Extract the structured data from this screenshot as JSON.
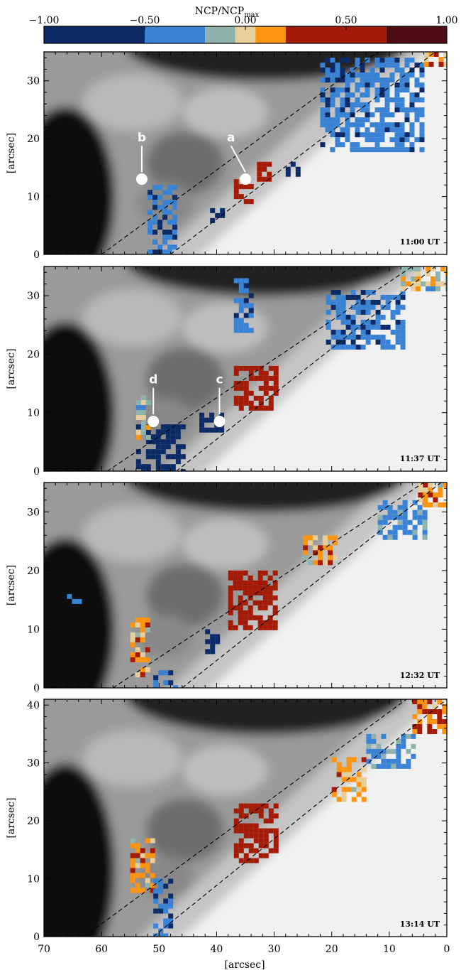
{
  "colorbar": {
    "title": "NCP/NCP",
    "title_sub": "max",
    "tick_labels": [
      "−1.00",
      "−0.50",
      "0.00",
      "0.50",
      "1.00"
    ],
    "tick_values": [
      -1.0,
      -0.5,
      0.0,
      0.5,
      1.0
    ],
    "bins": [
      {
        "from": -1.0,
        "to": -0.5,
        "color": "#0b2a66"
      },
      {
        "from": -0.5,
        "to": -0.2,
        "color": "#3a82d4"
      },
      {
        "from": -0.2,
        "to": -0.05,
        "color": "#8fb3ac"
      },
      {
        "from": -0.05,
        "to": 0.05,
        "color": "#e6cf9b"
      },
      {
        "from": 0.05,
        "to": 0.2,
        "color": "#fb9512"
      },
      {
        "from": 0.2,
        "to": 0.7,
        "color": "#a31a06"
      },
      {
        "from": 0.7,
        "to": 1.0,
        "color": "#4e0d15"
      }
    ]
  },
  "x_axis_title": "[arcsec]",
  "y_axis_title": "[arcsec]",
  "chart_data": [
    {
      "type": "heatmap",
      "time_label": "11:00 UT",
      "xlim": [
        70,
        0
      ],
      "ylim": [
        0,
        35
      ],
      "x_ticks": [
        70,
        60,
        50,
        40,
        30,
        20,
        10,
        0
      ],
      "y_ticks": [
        0,
        10,
        20,
        30
      ],
      "markers": [
        {
          "label": "b",
          "x": 53,
          "y": 13,
          "label_x": 53,
          "label_y": 19.5
        },
        {
          "label": "a",
          "x": 35,
          "y": 13,
          "label_x": 37.5,
          "label_y": 19.5
        }
      ],
      "dashed_lines": [
        [
          [
            60,
            0
          ],
          [
            12,
            35
          ]
        ],
        [
          [
            48,
            0
          ],
          [
            2,
            35
          ]
        ]
      ],
      "patches": [
        {
          "x": [
            52,
            47
          ],
          "y": [
            0,
            12
          ],
          "value": -0.4
        },
        {
          "x": [
            42,
            39
          ],
          "y": [
            6,
            8
          ],
          "value": -0.8
        },
        {
          "x": [
            37,
            34
          ],
          "y": [
            9,
            13
          ],
          "value": 0.5
        },
        {
          "x": [
            33,
            31
          ],
          "y": [
            13,
            16
          ],
          "value": 0.45
        },
        {
          "x": [
            28,
            26
          ],
          "y": [
            14,
            16
          ],
          "value": -0.9
        },
        {
          "x": [
            22,
            4
          ],
          "y": [
            18,
            34
          ],
          "value": -0.4
        },
        {
          "x": [
            4,
            0
          ],
          "y": [
            33,
            35
          ],
          "value": 0.1
        }
      ]
    },
    {
      "type": "heatmap",
      "time_label": "11:37 UT",
      "xlim": [
        70,
        0
      ],
      "ylim": [
        0,
        35
      ],
      "x_ticks": [
        70,
        60,
        50,
        40,
        30,
        20,
        10,
        0
      ],
      "y_ticks": [
        0,
        10,
        20,
        30
      ],
      "markers": [
        {
          "label": "d",
          "x": 51,
          "y": 8.5,
          "label_x": 51,
          "label_y": 15
        },
        {
          "label": "c",
          "x": 39.5,
          "y": 8.5,
          "label_x": 39.5,
          "label_y": 15
        }
      ],
      "dashed_lines": [
        [
          [
            59,
            0
          ],
          [
            6,
            35
          ]
        ],
        [
          [
            47,
            0
          ],
          [
            2,
            35
          ]
        ]
      ],
      "patches": [
        {
          "x": [
            54,
            46
          ],
          "y": [
            0,
            8
          ],
          "value": -0.7
        },
        {
          "x": [
            54,
            52
          ],
          "y": [
            6,
            13
          ],
          "value": -0.1
        },
        {
          "x": [
            43,
            39
          ],
          "y": [
            7,
            10
          ],
          "value": -0.85
        },
        {
          "x": [
            37,
            34
          ],
          "y": [
            24,
            33
          ],
          "value": -0.4
        },
        {
          "x": [
            37,
            30
          ],
          "y": [
            11,
            18
          ],
          "value": 0.5
        },
        {
          "x": [
            21,
            8
          ],
          "y": [
            21,
            31
          ],
          "value": -0.4
        },
        {
          "x": [
            8,
            0
          ],
          "y": [
            31,
            35
          ],
          "value": -0.05
        }
      ]
    },
    {
      "type": "heatmap",
      "time_label": "12:32 UT",
      "xlim": [
        70,
        0
      ],
      "ylim": [
        0,
        35
      ],
      "x_ticks": [
        70,
        60,
        50,
        40,
        30,
        20,
        10,
        0
      ],
      "y_ticks": [
        0,
        10,
        20,
        30
      ],
      "markers": [],
      "dashed_lines": [
        [
          [
            58,
            0
          ],
          [
            4,
            35
          ]
        ],
        [
          [
            46,
            0
          ],
          [
            1,
            35
          ]
        ]
      ],
      "patches": [
        {
          "x": [
            66,
            64
          ],
          "y": [
            14,
            16
          ],
          "value": -0.4
        },
        {
          "x": [
            55,
            52
          ],
          "y": [
            2,
            12
          ],
          "value": 0.1
        },
        {
          "x": [
            51,
            47
          ],
          "y": [
            0,
            3
          ],
          "value": -0.4
        },
        {
          "x": [
            42,
            40
          ],
          "y": [
            6,
            10
          ],
          "value": -0.85
        },
        {
          "x": [
            38,
            30
          ],
          "y": [
            10,
            20
          ],
          "value": 0.5
        },
        {
          "x": [
            25,
            19
          ],
          "y": [
            21,
            26
          ],
          "value": 0.1
        },
        {
          "x": [
            12,
            4
          ],
          "y": [
            26,
            32
          ],
          "value": -0.3
        },
        {
          "x": [
            5,
            0
          ],
          "y": [
            31,
            35
          ],
          "value": 0.1
        }
      ]
    },
    {
      "type": "heatmap",
      "time_label": "13:14 UT",
      "xlim": [
        70,
        0
      ],
      "ylim": [
        0,
        41
      ],
      "x_ticks": [
        70,
        60,
        50,
        40,
        30,
        20,
        10,
        0
      ],
      "y_ticks": [
        0,
        10,
        20,
        30,
        40
      ],
      "markers": [],
      "dashed_lines": [
        [
          [
            63,
            0
          ],
          [
            7,
            41
          ]
        ],
        [
          [
            51,
            0
          ],
          [
            0,
            41
          ]
        ]
      ],
      "patches": [
        {
          "x": [
            55,
            51
          ],
          "y": [
            8,
            17
          ],
          "value": 0.1
        },
        {
          "x": [
            51,
            48
          ],
          "y": [
            0,
            10
          ],
          "value": -0.4
        },
        {
          "x": [
            37,
            30
          ],
          "y": [
            13,
            23
          ],
          "value": 0.5
        },
        {
          "x": [
            20,
            14
          ],
          "y": [
            24,
            31
          ],
          "value": 0.1
        },
        {
          "x": [
            14,
            6
          ],
          "y": [
            29,
            35
          ],
          "value": -0.3
        },
        {
          "x": [
            6,
            0
          ],
          "y": [
            35,
            41
          ],
          "value": 0.2
        }
      ]
    }
  ]
}
